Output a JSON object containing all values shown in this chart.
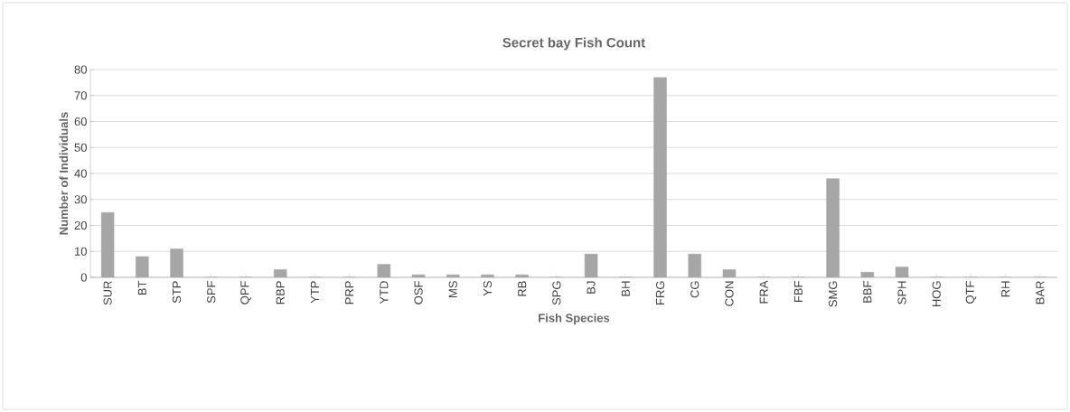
{
  "chart_data": {
    "type": "bar",
    "title": "Secret bay Fish Count",
    "xlabel": "Fish Species",
    "ylabel": "Number of Individuals",
    "categories": [
      "SUR",
      "BT",
      "STP",
      "SPF",
      "QPF",
      "RBP",
      "YTP",
      "PRP",
      "YTD",
      "OSF",
      "MS",
      "YS",
      "RB",
      "SPG",
      "BJ",
      "BH",
      "FRG",
      "CG",
      "CON",
      "FRA",
      "FBF",
      "SMG",
      "BBF",
      "SPH",
      "HOG",
      "QTF",
      "RH",
      "BAR"
    ],
    "values": [
      25,
      8,
      11,
      0,
      0,
      3,
      0,
      0,
      5,
      1,
      1,
      1,
      1,
      0,
      9,
      0,
      77,
      9,
      3,
      0,
      0,
      38,
      2,
      4,
      0,
      0,
      0,
      0
    ],
    "color": "#a6a6a6",
    "ylim": [
      0,
      80
    ],
    "yticks": [
      0,
      10,
      20,
      30,
      40,
      50,
      60,
      70,
      80
    ],
    "grid": "y"
  }
}
